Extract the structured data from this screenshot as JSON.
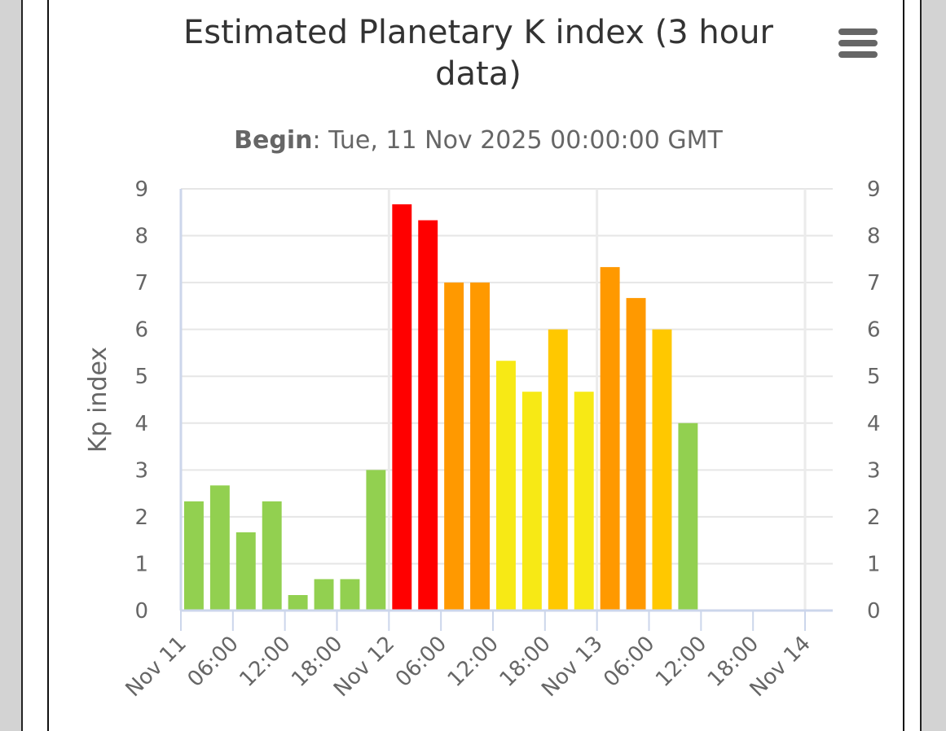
{
  "chart_data": {
    "type": "bar",
    "title": "Estimated Planetary K index (3 hour data)",
    "subtitle_label": "Begin",
    "subtitle_value": ": Tue, 11 Nov 2025 00:00:00 GMT",
    "ylabel": "Kp index",
    "ylim": [
      0,
      9
    ],
    "yticks": [
      "0",
      "1",
      "2",
      "3",
      "4",
      "5",
      "6",
      "7",
      "8",
      "9"
    ],
    "x_tick_labels": [
      "Nov 11",
      "06:00",
      "12:00",
      "18:00",
      "Nov 12",
      "06:00",
      "12:00",
      "18:00",
      "Nov 13",
      "06:00",
      "12:00",
      "18:00",
      "Nov 14"
    ],
    "bar_slot_hours": 3,
    "x_range_hours": [
      0,
      72
    ],
    "values": [
      2.33,
      2.67,
      1.67,
      2.33,
      0.33,
      0.67,
      0.67,
      3.0,
      8.67,
      8.33,
      7.0,
      7.0,
      5.33,
      4.67,
      6.0,
      4.67,
      7.33,
      6.67,
      6.0,
      4.0
    ],
    "colors": [
      "#92d050",
      "#92d050",
      "#92d050",
      "#92d050",
      "#92d050",
      "#92d050",
      "#92d050",
      "#92d050",
      "#ff0000",
      "#ff0000",
      "#ff9900",
      "#ff9900",
      "#f7e915",
      "#f7e915",
      "#ffc800",
      "#f7e915",
      "#ff9900",
      "#ff9900",
      "#ffc800",
      "#92d050"
    ],
    "grid": true,
    "right_axis": true
  },
  "menu_icon": "hamburger-menu-icon"
}
